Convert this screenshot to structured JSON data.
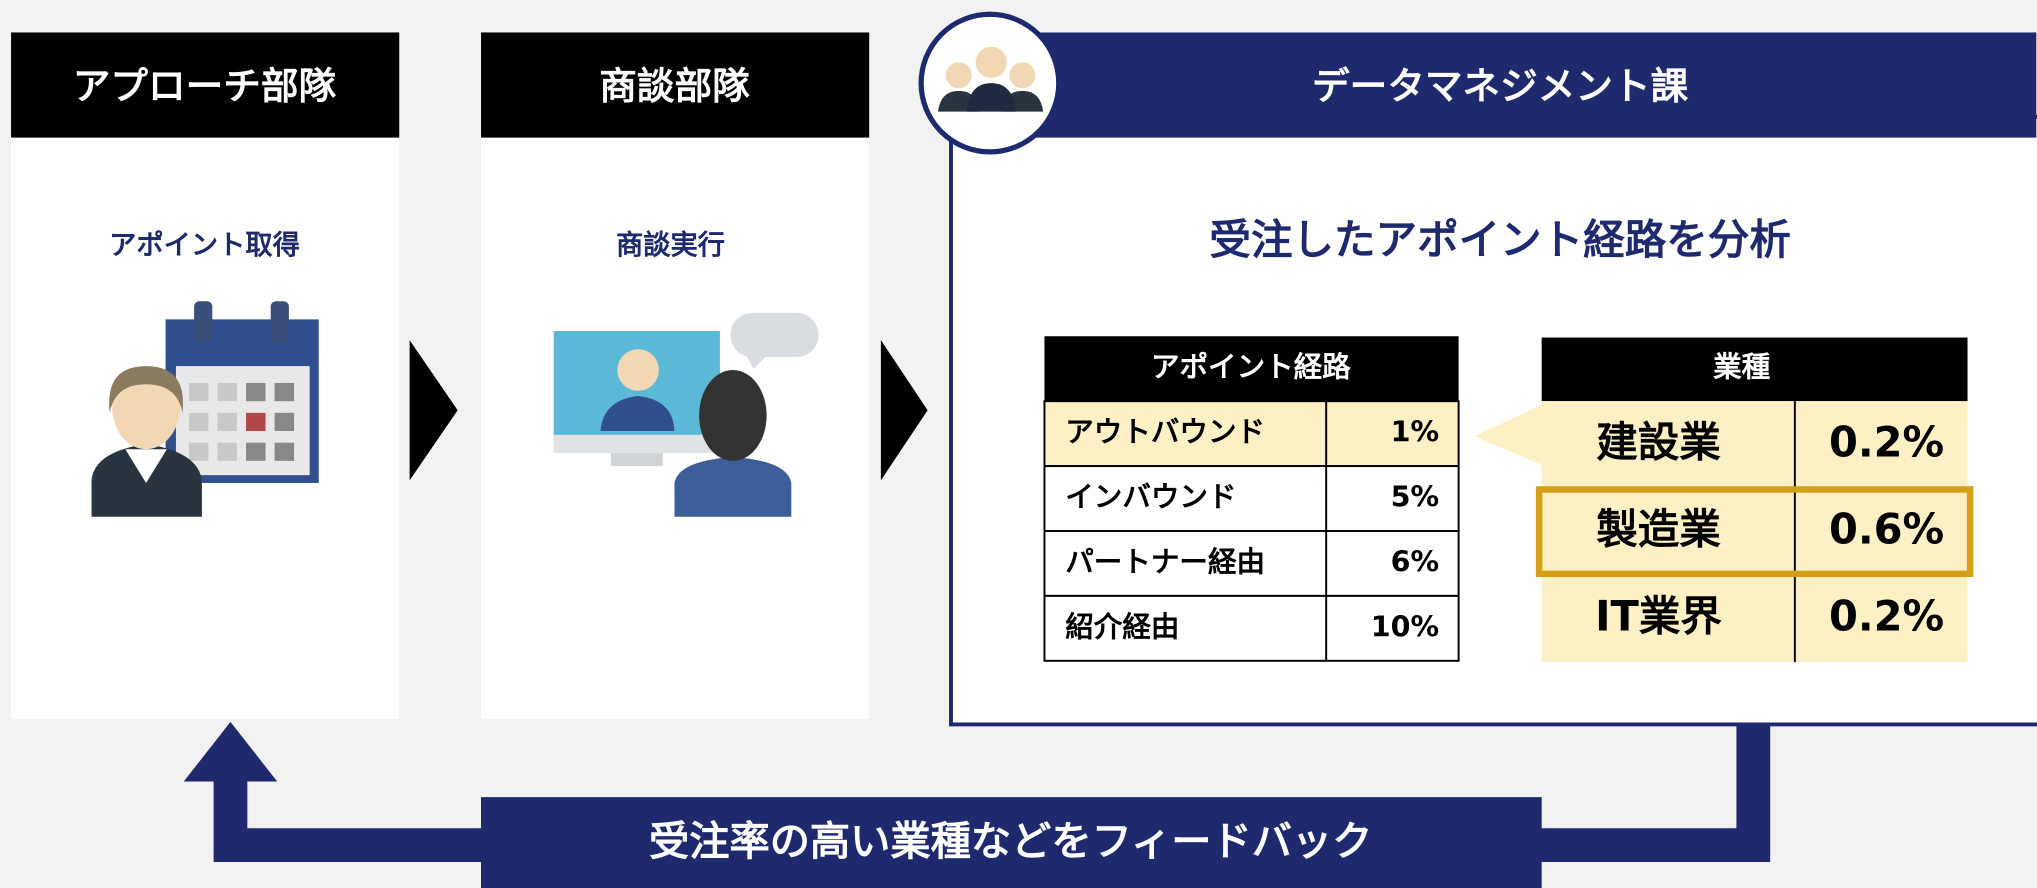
{
  "panels": [
    {
      "title": "アプローチ部隊",
      "caption": "アポイント取得"
    },
    {
      "title": "商談部隊",
      "caption": "商談実行"
    }
  ],
  "analysis": {
    "title": "データマネジメント課",
    "heading": "受注したアポイント経路を分析",
    "route_table": {
      "header": "アポイント経路",
      "rows": [
        [
          "アウトバウンド",
          "1%"
        ],
        [
          "インバウンド",
          "5%"
        ],
        [
          "パートナー経由",
          "6%"
        ],
        [
          "紹介経由",
          "10%"
        ]
      ]
    },
    "industry_table": {
      "header": "業種",
      "rows": [
        [
          "建設業",
          "0.2%"
        ],
        [
          "製造業",
          "0.6%"
        ],
        [
          "IT業界",
          "0.2%"
        ]
      ]
    }
  },
  "feedback": "受注率の高い業種などをフィードバック"
}
